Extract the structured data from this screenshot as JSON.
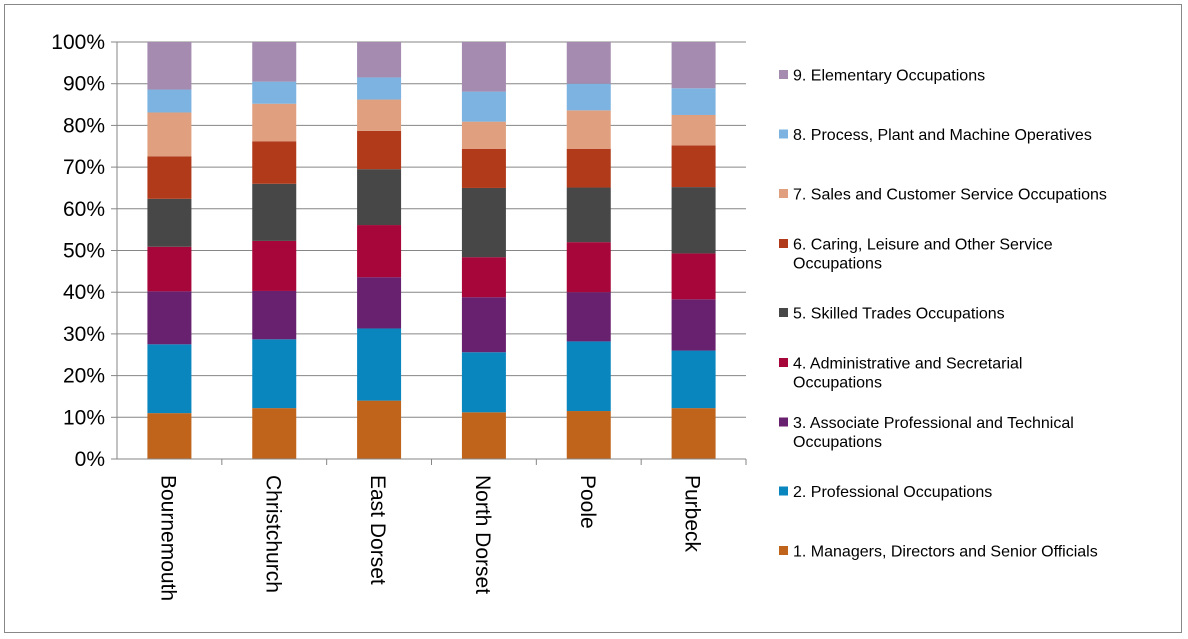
{
  "chart_data": {
    "type": "bar",
    "stacked": true,
    "normalized_percent": true,
    "categories": [
      "Bournemouth",
      "Christchurch",
      "East Dorset",
      "North Dorset",
      "Poole",
      "Purbeck"
    ],
    "ylim": [
      0,
      100
    ],
    "yticks": [
      "0%",
      "10%",
      "20%",
      "30%",
      "40%",
      "50%",
      "60%",
      "70%",
      "80%",
      "90%",
      "100%"
    ],
    "grid": true,
    "legend_position": "right",
    "series": [
      {
        "name": "1. Managers, Directors and Senior Officials",
        "color": "#C0641B",
        "values": [
          11,
          12.2,
          14,
          11.2,
          11.5,
          12.2
        ]
      },
      {
        "name": "2. Professional Occupations",
        "color": "#0A86BF",
        "values": [
          16.5,
          16.5,
          17.3,
          14.4,
          16.7,
          13.8
        ]
      },
      {
        "name": "3. Associate Professional and Technical Occupations",
        "color": "#68216F",
        "values": [
          12.7,
          11.6,
          12.3,
          13.2,
          11.8,
          12.3
        ]
      },
      {
        "name": "4. Administrative and Secretarial Occupations",
        "color": "#A6063A",
        "values": [
          10.7,
          12,
          12.5,
          9.6,
          12,
          11
        ]
      },
      {
        "name": "5. Skilled Trades Occupations",
        "color": "#474747",
        "values": [
          11.5,
          13.7,
          13.4,
          16.6,
          13.1,
          15.9
        ]
      },
      {
        "name": "6. Caring, Leisure and Other Service Occupations",
        "color": "#B13A1A",
        "values": [
          10.2,
          10.2,
          9.2,
          9.4,
          9.3,
          10
        ]
      },
      {
        "name": "7. Sales and Customer Service Occupations",
        "color": "#E0A080",
        "values": [
          10.5,
          9,
          7.5,
          6.5,
          9.2,
          7.3
        ]
      },
      {
        "name": "8. Process, Plant and Machine Operatives",
        "color": "#7CB3E0",
        "values": [
          5.5,
          5.3,
          5.3,
          7.2,
          6.4,
          6.4
        ]
      },
      {
        "name": "9. Elementary Occupations",
        "color": "#A48BAF",
        "values": [
          11.4,
          9.5,
          8.5,
          11.9,
          10,
          11.1
        ]
      }
    ]
  }
}
